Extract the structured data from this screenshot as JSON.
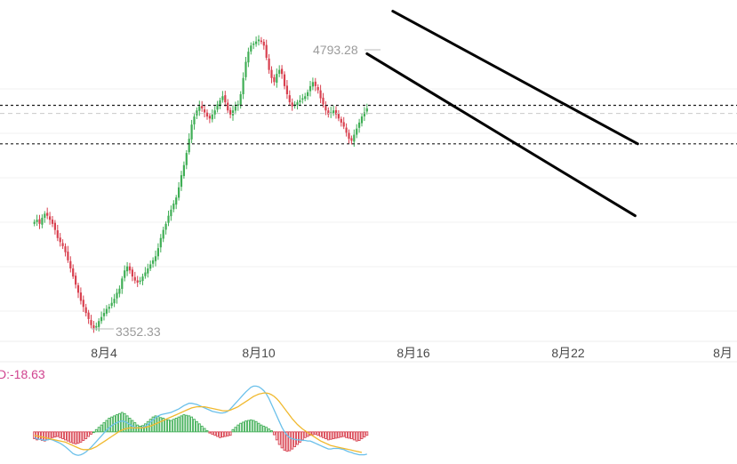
{
  "chart_data": {
    "type": "candlestick",
    "price_chart": {
      "x_ticks": [
        {
          "day": 4,
          "label": "8月4"
        },
        {
          "day": 10,
          "label": "8月10"
        },
        {
          "day": 16,
          "label": "8月16"
        },
        {
          "day": 22,
          "label": "8月22"
        },
        {
          "day": 28,
          "label": "8月"
        }
      ],
      "y_range": [
        3300,
        4950
      ],
      "grid": true,
      "high_label": {
        "value": 4793.28,
        "text": "4793.28"
      },
      "low_label": {
        "value": 3352.33,
        "text": "3352.33"
      },
      "horizontal_levels": [
        {
          "value": 4465,
          "style": "dotted"
        },
        {
          "value": 4275,
          "style": "dotted"
        },
        {
          "value": 4425,
          "style": "dashed-gray"
        }
      ],
      "trend_lines": [
        {
          "from": {
            "day": 15.2,
            "price": 4930
          },
          "to": {
            "day": 24.7,
            "price": 4275
          }
        },
        {
          "from": {
            "day": 14.2,
            "price": 4720
          },
          "to": {
            "day": 24.6,
            "price": 3920
          }
        }
      ],
      "candles_per_day": 10,
      "start_day": 1.3,
      "closes": [
        3890,
        3900,
        3880,
        3910,
        3930,
        3920,
        3900,
        3880,
        3850,
        3810,
        3790,
        3770,
        3740,
        3700,
        3660,
        3620,
        3580,
        3540,
        3500,
        3470,
        3440,
        3410,
        3380,
        3365,
        3375,
        3400,
        3420,
        3440,
        3460,
        3470,
        3490,
        3510,
        3540,
        3560,
        3610,
        3650,
        3670,
        3650,
        3620,
        3600,
        3590,
        3600,
        3620,
        3640,
        3660,
        3680,
        3700,
        3720,
        3760,
        3810,
        3850,
        3880,
        3920,
        3950,
        3980,
        4010,
        4060,
        4120,
        4170,
        4230,
        4300,
        4370,
        4410,
        4440,
        4460,
        4450,
        4430,
        4410,
        4400,
        4420,
        4440,
        4470,
        4490,
        4510,
        4480,
        4440,
        4420,
        4440,
        4460,
        4470,
        4520,
        4600,
        4680,
        4730,
        4760,
        4770,
        4780,
        4790,
        4780,
        4760,
        4700,
        4640,
        4600,
        4580,
        4620,
        4640,
        4620,
        4560,
        4520,
        4480,
        4460,
        4470,
        4480,
        4490,
        4500,
        4510,
        4530,
        4560,
        4580,
        4560,
        4540,
        4500,
        4470,
        4440,
        4420,
        4430,
        4440,
        4420,
        4400,
        4380,
        4360,
        4330,
        4300,
        4290,
        4320,
        4350,
        4380,
        4410,
        4430,
        4450
      ]
    },
    "macd_chart": {
      "label": "D:-18.63",
      "histogram": [
        -12,
        -14,
        -13,
        -15,
        -16,
        -14,
        -12,
        -10,
        -9,
        -8,
        -10,
        -12,
        -14,
        -16,
        -18,
        -20,
        -21,
        -20,
        -18,
        -15,
        -12,
        -8,
        -4,
        0,
        4,
        8,
        12,
        16,
        20,
        24,
        26,
        28,
        30,
        32,
        34,
        32,
        28,
        24,
        20,
        16,
        12,
        10,
        11,
        14,
        18,
        22,
        26,
        28,
        27,
        25,
        24,
        22,
        21,
        20,
        22,
        24,
        26,
        28,
        30,
        29,
        28,
        26,
        22,
        18,
        14,
        10,
        6,
        2,
        -2,
        -4,
        -6,
        -8,
        -10,
        -9,
        -8,
        -7,
        -6,
        4,
        8,
        12,
        15,
        17,
        19,
        20,
        21,
        20,
        18,
        15,
        12,
        10,
        8,
        5,
        2,
        -5,
        -14,
        -22,
        -28,
        -32,
        -34,
        -33,
        -30,
        -26,
        -22,
        -18,
        -14,
        -10,
        -8,
        -6,
        -5,
        -4,
        -6,
        -8,
        -10,
        -12,
        -14,
        -13,
        -12,
        -11,
        -10,
        -9,
        -8,
        -10,
        -11,
        -12,
        -14,
        -16,
        -15,
        -12,
        -9,
        -6
      ],
      "dif_line": [
        -10,
        -12,
        -13,
        -14,
        -15,
        -14,
        -13,
        -14,
        -16,
        -18,
        -20,
        -23,
        -26,
        -30,
        -34,
        -38,
        -40,
        -41,
        -40,
        -38,
        -35,
        -31,
        -27,
        -22,
        -17,
        -12,
        -7,
        -2,
        3,
        7,
        11,
        14,
        16,
        18,
        19,
        18,
        16,
        13,
        10,
        8,
        7,
        7,
        8,
        10,
        13,
        17,
        21,
        25,
        28,
        30,
        31,
        32,
        33,
        34,
        36,
        38,
        40,
        43,
        46,
        48,
        50,
        50,
        49,
        48,
        46,
        44,
        42,
        40,
        38,
        36,
        35,
        34,
        33,
        33,
        34,
        36,
        40,
        45,
        50,
        55,
        60,
        65,
        70,
        74,
        78,
        80,
        80,
        79,
        76,
        72,
        66,
        58,
        48,
        38,
        28,
        18,
        8,
        0,
        -6,
        -10,
        -12,
        -13,
        -14,
        -14,
        -15,
        -15,
        -16,
        -16,
        -18,
        -20,
        -22,
        -24,
        -26,
        -28,
        -30,
        -30,
        -29,
        -29,
        -29,
        -30,
        -31,
        -33,
        -35,
        -36,
        -38,
        -39,
        -40,
        -40,
        -40,
        -39
      ],
      "dea_line": [
        -6,
        -7,
        -8,
        -9,
        -10,
        -11,
        -12,
        -13,
        -14,
        -15,
        -16,
        -17,
        -18,
        -20,
        -22,
        -24,
        -26,
        -28,
        -30,
        -31,
        -31,
        -31,
        -30,
        -28,
        -26,
        -23,
        -20,
        -17,
        -14,
        -11,
        -8,
        -5,
        -2,
        1,
        3,
        5,
        6,
        7,
        7,
        7,
        7,
        7,
        7,
        8,
        9,
        10,
        12,
        14,
        16,
        18,
        20,
        22,
        24,
        26,
        28,
        30,
        32,
        34,
        36,
        38,
        40,
        42,
        43,
        44,
        44,
        44,
        44,
        43,
        42,
        41,
        40,
        39,
        38,
        37,
        37,
        37,
        38,
        40,
        42,
        44,
        47,
        50,
        53,
        56,
        59,
        62,
        64,
        66,
        67,
        68,
        68,
        67,
        65,
        62,
        58,
        53,
        47,
        41,
        35,
        29,
        23,
        18,
        13,
        9,
        5,
        2,
        -1,
        -4,
        -7,
        -10,
        -13,
        -16,
        -18,
        -20,
        -22,
        -24,
        -25,
        -26,
        -27,
        -28,
        -29,
        -30,
        -31,
        -32,
        -33,
        -34,
        -35,
        -36
      ],
      "y_range": [
        -50,
        90
      ]
    },
    "colors": {
      "up": "#3fae55",
      "down": "#d8404f",
      "dif_line": "#6bc0ea",
      "dea_line": "#f0b92f",
      "level_line": "#1b1b1b",
      "channel_line": "#000000",
      "macd_label": "#d0438f"
    }
  }
}
